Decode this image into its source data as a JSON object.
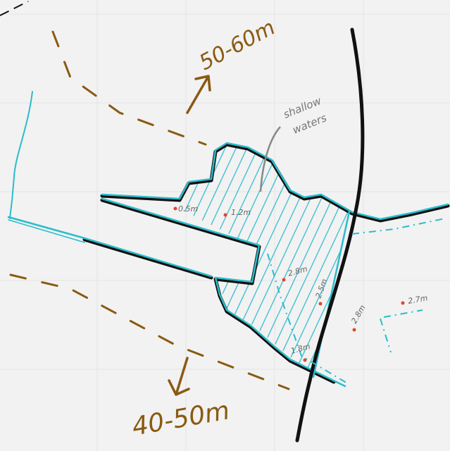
{
  "annotations": {
    "depth_north": "50-60m",
    "depth_south": "40-50m",
    "shallow_waters": [
      "shallow",
      "waters"
    ]
  },
  "soundings": [
    "0.5m",
    "1.2m",
    "2.8m",
    "2.5m",
    "1.8m",
    "2.8m",
    "2.7m"
  ]
}
